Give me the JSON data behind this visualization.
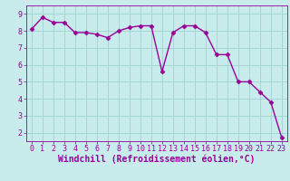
{
  "x": [
    0,
    1,
    2,
    3,
    4,
    5,
    6,
    7,
    8,
    9,
    10,
    11,
    12,
    13,
    14,
    15,
    16,
    17,
    18,
    19,
    20,
    21,
    22,
    23
  ],
  "y": [
    8.1,
    8.8,
    8.5,
    8.5,
    7.9,
    7.9,
    7.8,
    7.6,
    8.0,
    8.2,
    8.3,
    8.3,
    5.6,
    7.9,
    8.3,
    8.3,
    7.9,
    6.6,
    6.6,
    5.0,
    5.0,
    4.4,
    3.8,
    1.7
  ],
  "line_color": "#990099",
  "marker": "D",
  "markersize": 2.5,
  "linewidth": 1.0,
  "bg_color": "#c8ecec",
  "grid_color": "#a0d4d4",
  "xlabel": "Windchill (Refroidissement éolien,°C)",
  "xlabel_fontsize": 7,
  "xlim": [
    -0.5,
    23.5
  ],
  "ylim": [
    1.5,
    9.5
  ],
  "yticks": [
    2,
    3,
    4,
    5,
    6,
    7,
    8,
    9
  ],
  "xticks": [
    0,
    1,
    2,
    3,
    4,
    5,
    6,
    7,
    8,
    9,
    10,
    11,
    12,
    13,
    14,
    15,
    16,
    17,
    18,
    19,
    20,
    21,
    22,
    23
  ],
  "tick_fontsize": 6,
  "tick_color": "#990099",
  "label_color": "#990099"
}
